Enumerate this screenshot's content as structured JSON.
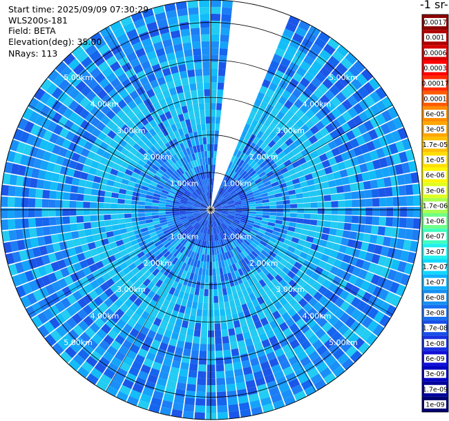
{
  "header": {
    "start_time": "Start time: 2025/09/09 07:30:29",
    "instrument": "WLS200s-181",
    "field": "Field: BETA",
    "elevation": "Elevation(deg): 35.00",
    "nrays": "NRays: 113"
  },
  "colorbar": {
    "title": "-1 sr-",
    "labels": [
      "0.0017",
      "0.001",
      "0.0006",
      "0.0003",
      "0.00017",
      "0.0001",
      "6e-05",
      "3e-05",
      "1.7e-05",
      "1e-05",
      "6e-06",
      "3e-06",
      "1.7e-06",
      "1e-06",
      "6e-07",
      "3e-07",
      "1.7e-07",
      "1e-07",
      "6e-08",
      "3e-08",
      "1.7e-08",
      "1e-08",
      "6e-09",
      "3e-09",
      "1.7e-09",
      "1e-09"
    ],
    "colors": [
      "#8b0000",
      "#b00000",
      "#d40000",
      "#ff0000",
      "#ff2a00",
      "#ff5a00",
      "#ff8c00",
      "#ffa500",
      "#ffc000",
      "#ffde00",
      "#fff700",
      "#e0ff20",
      "#a8ff50",
      "#70ff88",
      "#40ffc0",
      "#20f0f0",
      "#10d8ff",
      "#10b0ff",
      "#1890f0",
      "#1870f0",
      "#1850e8",
      "#1830e0",
      "#1010d8",
      "#0000c0",
      "#00009a",
      "#000070"
    ]
  },
  "ppi": {
    "range_rings_km": [
      1,
      2,
      3,
      4,
      5
    ],
    "ring_labels": [
      "1.00km",
      "2.00km",
      "3.00km",
      "4.00km",
      "5.00km"
    ],
    "max_range_km": 5.6,
    "nrays": 113,
    "gap_sector_deg": [
      5,
      23
    ]
  }
}
